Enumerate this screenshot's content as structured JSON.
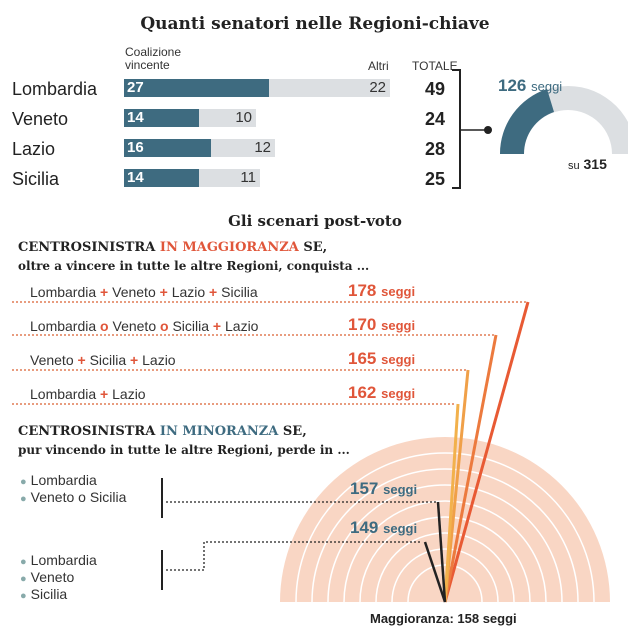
{
  "title": "Quanti senatori nelle Regioni-chiave",
  "table": {
    "header_coalition": "Coalizione vincente",
    "header_others": "Altri",
    "header_total": "TOTALE",
    "rows": [
      {
        "region": "Lombardia",
        "coalition": "27",
        "others": "22",
        "total": "49"
      },
      {
        "region": "Veneto",
        "coalition": "14",
        "others": "10",
        "total": "24"
      },
      {
        "region": "Lazio",
        "coalition": "16",
        "others": "12",
        "total": "28"
      },
      {
        "region": "Sicilia",
        "coalition": "14",
        "others": "11",
        "total": "25"
      }
    ]
  },
  "gauge": {
    "seats_value": "126",
    "seats_unit": "seggi",
    "of_prefix": "su",
    "of_value": "315",
    "fraction": 0.4
  },
  "scenarios_title": "Gli scenari post-voto",
  "majority": {
    "heading_a": "CENTROSINISTRA ",
    "heading_b": "IN MAGGIORANZA",
    "heading_c": " SE,",
    "subheading": "oltre a vincere in tutte le altre Regioni, conquista  ...",
    "items": [
      {
        "parts": [
          "Lombardia",
          " + ",
          "Veneto",
          " + ",
          "Lazio",
          " + ",
          "Sicilia"
        ],
        "seats": "178",
        "unit": "seggi"
      },
      {
        "parts": [
          "Lombardia",
          " o ",
          "Veneto",
          " o ",
          "Sicilia",
          " + ",
          "Lazio"
        ],
        "seats": "170",
        "unit": "seggi"
      },
      {
        "parts": [
          "Veneto",
          " + ",
          "Sicilia",
          " + ",
          "Lazio"
        ],
        "seats": "165",
        "unit": "seggi"
      },
      {
        "parts": [
          "Lombardia",
          " + ",
          "Lazio"
        ],
        "seats": "162",
        "unit": "seggi"
      }
    ]
  },
  "minority": {
    "heading_a": "CENTROSINISTRA ",
    "heading_b": "IN MINORANZA",
    "heading_c": " SE,",
    "subheading": "pur vincendo in tutte le altre Regioni, perde in ...",
    "group1": [
      "Lombardia",
      "Veneto o Sicilia"
    ],
    "group2": [
      "Lombardia",
      "Veneto",
      "Sicilia"
    ],
    "seats1": "157",
    "seats2": "149",
    "unit": "seggi"
  },
  "footer": "Maggioranza: 158 seggi",
  "colors": {
    "coalition": "#3e6b80",
    "others": "#dcdfe2",
    "orange": "#e0563a",
    "peach": "#f9d6c4"
  }
}
